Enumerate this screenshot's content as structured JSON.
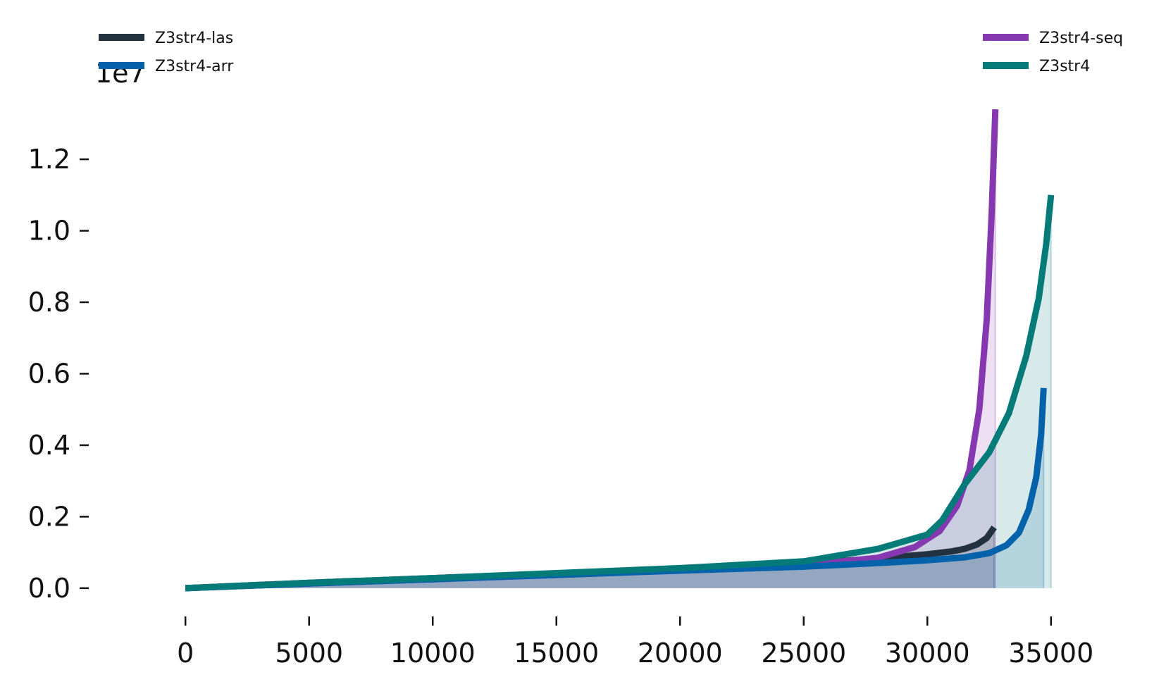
{
  "chart_data": {
    "type": "area",
    "title": "",
    "xlabel": "",
    "ylabel": "",
    "y_scale_exponent": "1e7",
    "xlim": [
      -1800,
      36800
    ],
    "ylim": [
      -200000,
      13500000
    ],
    "x_ticks": [
      0,
      5000,
      10000,
      15000,
      20000,
      25000,
      30000,
      35000
    ],
    "x_tick_labels": [
      "0",
      "5000",
      "10000",
      "15000",
      "20000",
      "25000",
      "30000",
      "35000"
    ],
    "y_ticks": [
      0,
      2000000,
      4000000,
      6000000,
      8000000,
      10000000,
      12000000
    ],
    "y_tick_labels": [
      "0.0",
      "0.2",
      "0.4",
      "0.6",
      "0.8",
      "1.0",
      "1.2"
    ],
    "grid": false,
    "legend_placement": "top-left and top-right",
    "series": [
      {
        "name": "Z3str4-las",
        "color": "#233240",
        "legend_group": "left",
        "x": [
          0,
          5000,
          10000,
          15000,
          20000,
          25000,
          28000,
          30000,
          31000,
          31500,
          32000,
          32400,
          32700
        ],
        "y": [
          0,
          150000,
          280000,
          410000,
          540000,
          690000,
          830000,
          950000,
          1030000,
          1100000,
          1220000,
          1400000,
          1700000
        ]
      },
      {
        "name": "Z3str4-arr",
        "color": "#0462aa",
        "legend_group": "left",
        "x": [
          0,
          5000,
          10000,
          15000,
          20000,
          25000,
          28000,
          30000,
          31500,
          32500,
          33200,
          33700,
          34100,
          34400,
          34600,
          34700
        ],
        "y": [
          0,
          130000,
          250000,
          370000,
          490000,
          600000,
          700000,
          780000,
          860000,
          980000,
          1200000,
          1550000,
          2200000,
          3100000,
          4300000,
          5600000
        ]
      },
      {
        "name": "Z3str4-seq",
        "color": "#8638b0",
        "legend_group": "right",
        "x": [
          0,
          5000,
          10000,
          15000,
          20000,
          25000,
          28000,
          29500,
          30500,
          31200,
          31700,
          32100,
          32400,
          32600,
          32750
        ],
        "y": [
          0,
          130000,
          250000,
          370000,
          500000,
          640000,
          850000,
          1150000,
          1600000,
          2300000,
          3300000,
          5000000,
          7500000,
          10500000,
          13400000
        ]
      },
      {
        "name": "Z3str4",
        "color": "#047b78",
        "legend_group": "right",
        "x": [
          0,
          5000,
          10000,
          15000,
          20000,
          25000,
          28000,
          30000,
          30600,
          31500,
          32500,
          33300,
          34000,
          34500,
          34800,
          35000
        ],
        "y": [
          0,
          150000,
          280000,
          420000,
          560000,
          750000,
          1100000,
          1500000,
          1900000,
          2900000,
          3800000,
          4900000,
          6500000,
          8100000,
          9600000,
          11000000
        ]
      }
    ]
  }
}
